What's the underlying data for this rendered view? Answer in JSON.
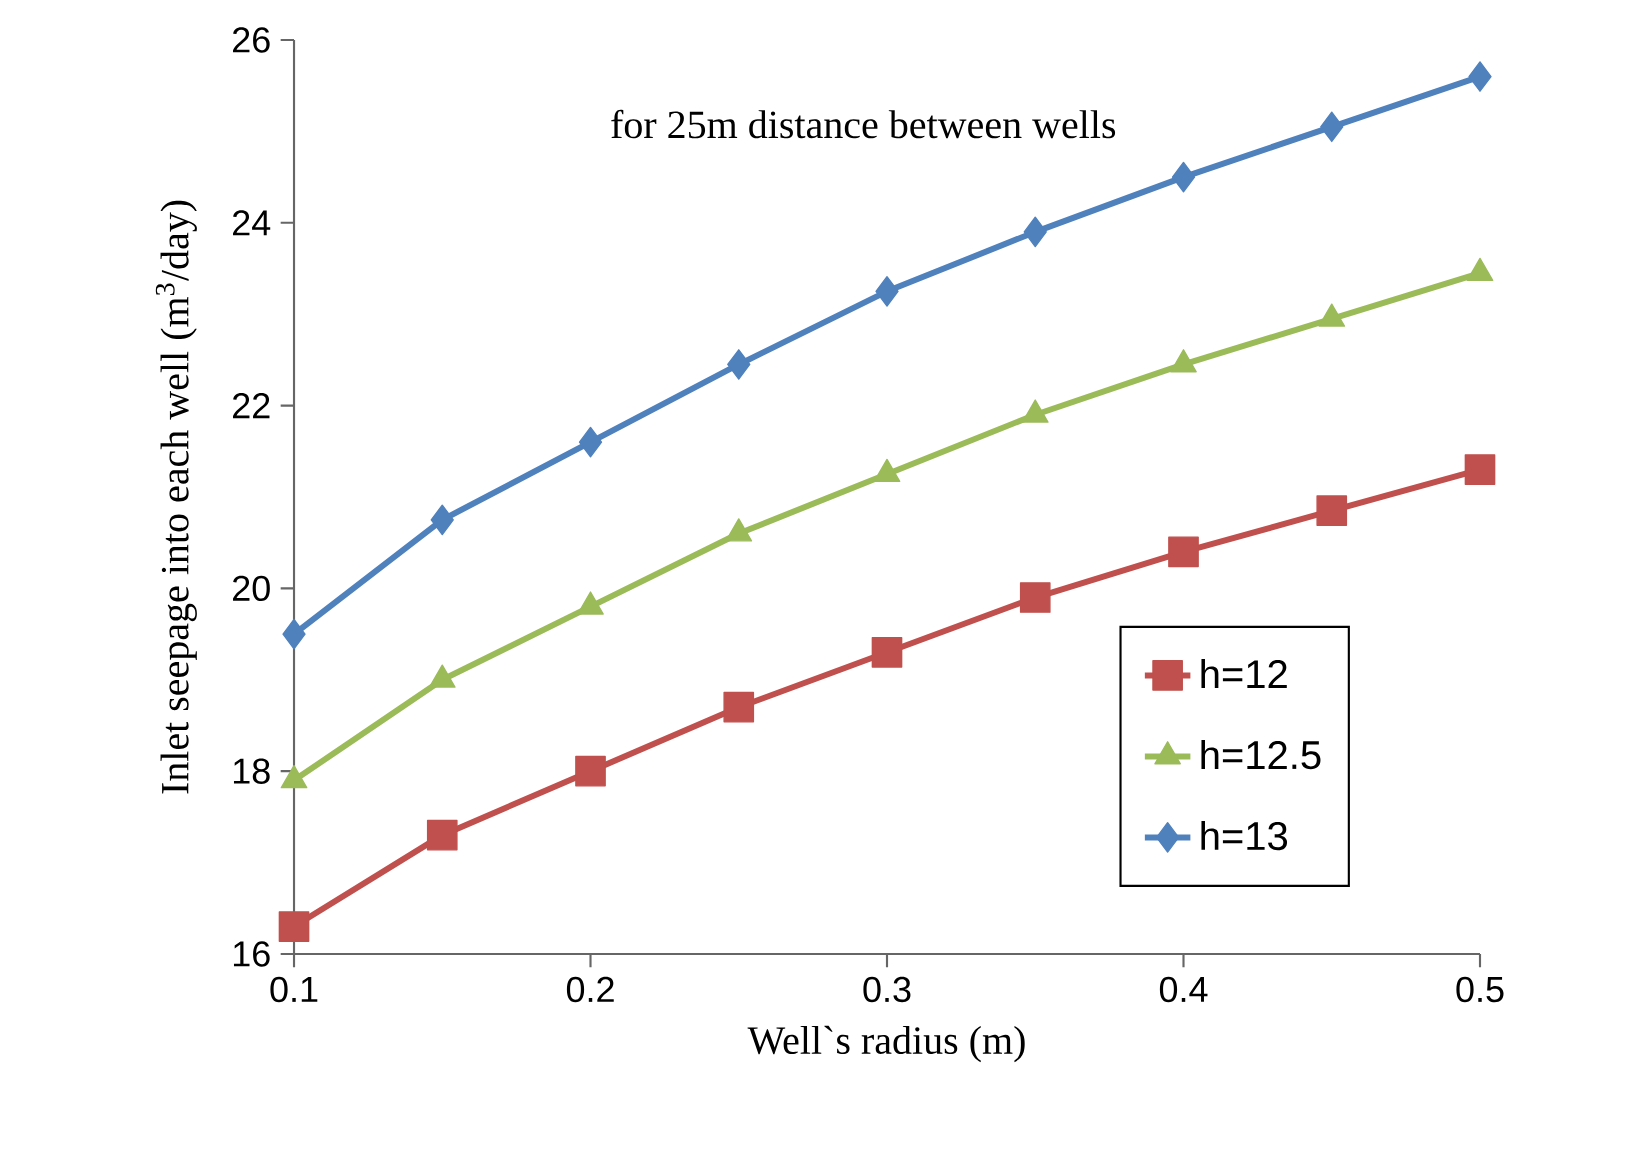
{
  "chart_data": {
    "type": "line",
    "xlabel": "Well`s radius (m)",
    "ylabel": "Inlet seepage into each well (m$^{3}$/day)",
    "annotations": [
      "for 25m distance between wells"
    ],
    "x": [
      0.1,
      0.15,
      0.2,
      0.25,
      0.3,
      0.35,
      0.4,
      0.45,
      0.5
    ],
    "series": [
      {
        "name": "h=12",
        "color": "#c0504d",
        "marker": "square",
        "values": [
          16.3,
          17.3,
          18.0,
          18.7,
          19.3,
          19.9,
          20.4,
          20.85,
          21.3
        ]
      },
      {
        "name": "h=12.5",
        "color": "#9bbb59",
        "marker": "triangle",
        "values": [
          17.9,
          19.0,
          19.8,
          20.6,
          21.25,
          21.9,
          22.45,
          22.95,
          23.45
        ]
      },
      {
        "name": "h=13",
        "color": "#4f81bd",
        "marker": "diamond",
        "values": [
          19.5,
          20.75,
          21.6,
          22.45,
          23.25,
          23.9,
          24.5,
          25.05,
          25.6
        ]
      }
    ],
    "xlim": [
      0.1,
      0.5
    ],
    "ylim": [
      16,
      26
    ],
    "xticks": [
      0.1,
      0.2,
      0.3,
      0.4,
      0.5
    ],
    "yticks": [
      16,
      18,
      20,
      22,
      24,
      26
    ],
    "grid": false,
    "legend": "bottom right"
  }
}
